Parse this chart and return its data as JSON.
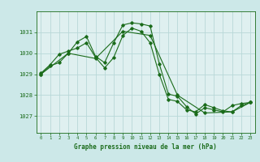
{
  "bg_color": "#cce8e8",
  "plot_bg": "#dff0f0",
  "grid_color": "#b8d8d8",
  "line_color": "#1a6b1a",
  "title": "Graphe pression niveau de la mer (hPa)",
  "xlim": [
    -0.5,
    23.5
  ],
  "ylim": [
    1026.2,
    1032.0
  ],
  "yticks": [
    1027,
    1028,
    1029,
    1030,
    1031
  ],
  "xticks": [
    0,
    1,
    2,
    3,
    4,
    5,
    6,
    7,
    8,
    9,
    10,
    11,
    12,
    13,
    14,
    15,
    16,
    17,
    18,
    19,
    20,
    21,
    22,
    23
  ],
  "series1": {
    "x": [
      0,
      1,
      2,
      3,
      4,
      5,
      6,
      7,
      8,
      9,
      10,
      11,
      12,
      13,
      14,
      15,
      16,
      17,
      18,
      19,
      20,
      21,
      22,
      23
    ],
    "y": [
      1029.0,
      1029.4,
      1029.55,
      1030.0,
      1030.55,
      1030.8,
      1029.85,
      1029.55,
      1030.5,
      1031.35,
      1031.45,
      1031.4,
      1031.3,
      1029.5,
      1028.05,
      1027.95,
      1027.45,
      1027.1,
      1027.4,
      1027.3,
      1027.2,
      1027.5,
      1027.6,
      1027.65
    ]
  },
  "series2": {
    "x": [
      0,
      1,
      2,
      3,
      4,
      5,
      6,
      7,
      8,
      9,
      10,
      11,
      12,
      13,
      14,
      15,
      16,
      17,
      18,
      19,
      20,
      21,
      22,
      23
    ],
    "y": [
      1029.05,
      1029.45,
      1029.95,
      1030.1,
      1030.25,
      1030.5,
      1029.8,
      1029.3,
      1029.8,
      1030.85,
      1031.2,
      1031.05,
      1030.5,
      1029.0,
      1027.8,
      1027.7,
      1027.3,
      1027.2,
      1027.55,
      1027.4,
      1027.25,
      1027.2,
      1027.5,
      1027.65
    ]
  },
  "series3": {
    "x": [
      0,
      3,
      6,
      9,
      12,
      15,
      18,
      21,
      23
    ],
    "y": [
      1029.0,
      1030.0,
      1029.75,
      1031.05,
      1030.85,
      1028.0,
      1027.15,
      1027.2,
      1027.65
    ]
  }
}
